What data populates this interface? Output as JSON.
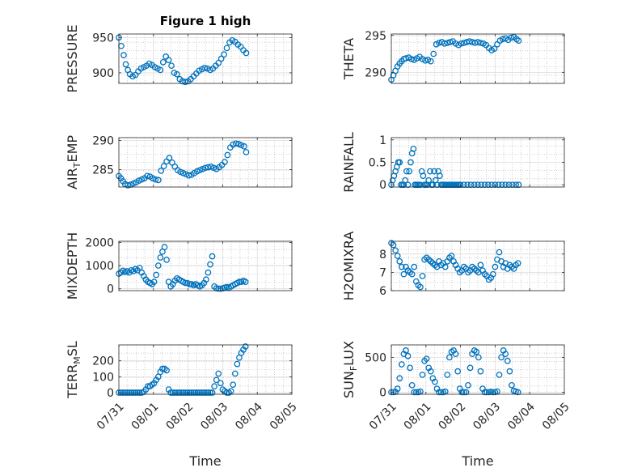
{
  "figure": {
    "title": "Figure 1 high",
    "xlabel": "Time"
  },
  "colors": {
    "marker": "#0072BD",
    "axis": "#262626",
    "grid": "#b0b0b0"
  },
  "chart_data": [
    {
      "type": "scatter",
      "id": "pressure",
      "title": "Figure 1 high",
      "ylabel": "PRESSURE",
      "ylim": [
        885,
        955
      ],
      "yticks": [
        {
          "v": 900,
          "t": "900"
        },
        {
          "v": 950,
          "t": "950"
        }
      ],
      "xticks": [],
      "xlabel": "",
      "x": [
        0.0,
        0.07,
        0.14,
        0.2,
        0.26,
        0.32,
        0.4,
        0.48,
        0.56,
        0.64,
        0.72,
        0.8,
        0.88,
        0.96,
        1.04,
        1.12,
        1.2,
        1.28,
        1.36,
        1.44,
        1.52,
        1.6,
        1.68,
        1.76,
        1.84,
        1.92,
        2.0,
        2.08,
        2.16,
        2.24,
        2.32,
        2.4,
        2.48,
        2.56,
        2.64,
        2.72,
        2.8,
        2.88,
        2.96,
        3.04,
        3.12,
        3.2,
        3.28,
        3.36,
        3.44,
        3.52,
        3.6,
        3.68
      ],
      "y": [
        950,
        938,
        925,
        912,
        904,
        898,
        895,
        897,
        902,
        906,
        908,
        910,
        913,
        911,
        908,
        906,
        904,
        915,
        923,
        918,
        910,
        900,
        898,
        891,
        888,
        887,
        888,
        891,
        895,
        899,
        903,
        905,
        907,
        906,
        904,
        906,
        910,
        914,
        920,
        926,
        935,
        943,
        946,
        944,
        940,
        937,
        932,
        928
      ]
    },
    {
      "type": "scatter",
      "id": "theta",
      "ylabel": "THETA",
      "ylim": [
        288.5,
        295.2
      ],
      "yticks": [
        {
          "v": 290,
          "t": "290"
        },
        {
          "v": 295,
          "t": "295"
        }
      ],
      "xticks": [],
      "xlabel": "",
      "x": [
        0.0,
        0.06,
        0.12,
        0.18,
        0.24,
        0.3,
        0.36,
        0.42,
        0.5,
        0.58,
        0.66,
        0.74,
        0.82,
        0.9,
        0.98,
        1.06,
        1.14,
        1.22,
        1.3,
        1.38,
        1.46,
        1.54,
        1.62,
        1.7,
        1.78,
        1.86,
        1.94,
        2.02,
        2.1,
        2.18,
        2.26,
        2.34,
        2.42,
        2.5,
        2.58,
        2.66,
        2.74,
        2.82,
        2.9,
        2.98,
        3.06,
        3.14,
        3.22,
        3.3,
        3.38,
        3.46,
        3.54,
        3.62,
        3.68
      ],
      "y": [
        289.0,
        289.6,
        290.2,
        290.8,
        291.2,
        291.5,
        291.8,
        291.9,
        292.0,
        291.8,
        291.7,
        291.9,
        292.1,
        291.8,
        291.6,
        291.7,
        291.5,
        292.5,
        293.8,
        294.0,
        294.1,
        293.9,
        294.0,
        294.1,
        294.2,
        293.9,
        293.7,
        293.9,
        294.0,
        294.1,
        294.2,
        294.1,
        294.0,
        294.1,
        294.0,
        293.9,
        293.7,
        293.3,
        293.0,
        293.2,
        293.8,
        294.3,
        294.5,
        294.6,
        294.4,
        294.7,
        294.8,
        294.5,
        294.3
      ]
    },
    {
      "type": "scatter",
      "id": "air_temp",
      "ylabel": "AIR",
      "ylabel_sub": "T",
      "ylabel_rest": "EMP",
      "ylim": [
        282,
        290.5
      ],
      "yticks": [
        {
          "v": 285,
          "t": "285"
        },
        {
          "v": 290,
          "t": "290"
        }
      ],
      "xticks": [],
      "xlabel": "",
      "x": [
        0.0,
        0.06,
        0.12,
        0.18,
        0.26,
        0.34,
        0.42,
        0.5,
        0.58,
        0.66,
        0.74,
        0.82,
        0.9,
        0.98,
        1.06,
        1.14,
        1.22,
        1.3,
        1.38,
        1.46,
        1.54,
        1.62,
        1.7,
        1.78,
        1.86,
        1.94,
        2.02,
        2.1,
        2.18,
        2.26,
        2.34,
        2.42,
        2.5,
        2.58,
        2.66,
        2.74,
        2.82,
        2.9,
        2.98,
        3.06,
        3.14,
        3.22,
        3.3,
        3.38,
        3.46,
        3.54,
        3.62,
        3.68
      ],
      "y": [
        283.9,
        283.5,
        283.0,
        282.5,
        282.3,
        282.4,
        282.6,
        282.8,
        283.1,
        283.3,
        283.5,
        283.9,
        283.8,
        283.5,
        283.3,
        283.2,
        284.8,
        285.6,
        286.4,
        287.0,
        286.2,
        285.5,
        284.9,
        284.6,
        284.4,
        284.2,
        284.0,
        284.1,
        284.4,
        284.7,
        284.9,
        285.1,
        285.3,
        285.4,
        285.5,
        285.3,
        285.1,
        285.4,
        285.8,
        286.3,
        287.5,
        288.8,
        289.3,
        289.5,
        289.4,
        289.2,
        289.0,
        288.0
      ]
    },
    {
      "type": "scatter",
      "id": "rainfall",
      "ylabel": "RAINFALL",
      "ylim": [
        -0.05,
        1.05
      ],
      "yticks": [
        {
          "v": 0,
          "t": "0"
        },
        {
          "v": 0.5,
          "t": "0.5"
        },
        {
          "v": 1,
          "t": "1"
        }
      ],
      "xticks": [],
      "xlabel": "",
      "x": [
        0.0,
        0.04,
        0.08,
        0.12,
        0.16,
        0.2,
        0.24,
        0.28,
        0.32,
        0.36,
        0.4,
        0.44,
        0.48,
        0.52,
        0.56,
        0.6,
        0.64,
        0.68,
        0.72,
        0.76,
        0.8,
        0.84,
        0.88,
        0.92,
        0.96,
        1.0,
        1.04,
        1.08,
        1.12,
        1.16,
        1.2,
        1.24,
        1.28,
        1.32,
        1.36,
        1.4,
        1.44,
        1.48,
        1.52,
        1.56,
        1.6,
        1.64,
        1.68,
        1.72,
        1.76,
        1.8,
        1.84,
        1.88,
        1.92,
        1.96,
        2.0,
        2.1,
        2.2,
        2.3,
        2.4,
        2.5,
        2.6,
        2.7,
        2.8,
        2.9,
        3.0,
        3.1,
        3.2,
        3.3,
        3.4,
        3.5,
        3.6,
        3.68
      ],
      "y": [
        0.0,
        0.1,
        0.2,
        0.3,
        0.4,
        0.5,
        0.5,
        0.0,
        0.0,
        0.0,
        0.1,
        0.3,
        0.0,
        0.3,
        0.5,
        0.7,
        0.8,
        0.0,
        0.0,
        0.0,
        0.0,
        0.0,
        0.3,
        0.2,
        0.0,
        0.0,
        0.0,
        0.1,
        0.3,
        0.0,
        0.0,
        0.3,
        0.1,
        0.0,
        0.3,
        0.2,
        0.0,
        0.0,
        0.0,
        0.0,
        0.0,
        0.0,
        0.0,
        0.0,
        0.0,
        0.0,
        0.0,
        0.0,
        0.0,
        0.0,
        0.0,
        0.0,
        0.0,
        0.0,
        0.0,
        0.0,
        0.0,
        0.0,
        0.0,
        0.0,
        0.0,
        0.0,
        0.0,
        0.0,
        0.0,
        0.0,
        0.0,
        0.0
      ]
    },
    {
      "type": "scatter",
      "id": "mixdepth",
      "ylabel": "MIXDEPTH",
      "ylim": [
        -80,
        2050
      ],
      "yticks": [
        {
          "v": 0,
          "t": "0"
        },
        {
          "v": 1000,
          "t": "1000"
        },
        {
          "v": 2000,
          "t": "2000"
        }
      ],
      "xticks": [],
      "xlabel": "",
      "x": [
        0.0,
        0.06,
        0.12,
        0.18,
        0.24,
        0.3,
        0.36,
        0.42,
        0.48,
        0.54,
        0.6,
        0.66,
        0.72,
        0.78,
        0.84,
        0.9,
        0.96,
        1.02,
        1.08,
        1.14,
        1.2,
        1.26,
        1.32,
        1.38,
        1.44,
        1.5,
        1.56,
        1.62,
        1.68,
        1.74,
        1.8,
        1.86,
        1.92,
        1.98,
        2.04,
        2.1,
        2.16,
        2.22,
        2.28,
        2.34,
        2.4,
        2.46,
        2.52,
        2.58,
        2.64,
        2.7,
        2.76,
        2.82,
        2.88,
        2.94,
        3.0,
        3.06,
        3.12,
        3.18,
        3.24,
        3.3,
        3.36,
        3.42,
        3.48,
        3.54,
        3.6,
        3.66
      ],
      "y": [
        650,
        700,
        780,
        720,
        760,
        700,
        800,
        760,
        850,
        800,
        900,
        700,
        550,
        400,
        300,
        250,
        200,
        300,
        600,
        1000,
        1350,
        1600,
        1800,
        1250,
        300,
        100,
        200,
        350,
        450,
        400,
        350,
        300,
        250,
        250,
        200,
        200,
        150,
        200,
        150,
        100,
        150,
        250,
        400,
        700,
        1050,
        1400,
        100,
        20,
        10,
        0,
        20,
        50,
        80,
        50,
        100,
        150,
        200,
        250,
        300,
        300,
        350,
        300
      ]
    },
    {
      "type": "scatter",
      "id": "h2omixra",
      "ylabel": "H2OMIXRA",
      "ylim": [
        6,
        8.7
      ],
      "yticks": [
        {
          "v": 6,
          "t": "6"
        },
        {
          "v": 7,
          "t": "7"
        },
        {
          "v": 8,
          "t": "8"
        }
      ],
      "xticks": [],
      "xlabel": "",
      "x": [
        0.0,
        0.06,
        0.12,
        0.18,
        0.24,
        0.3,
        0.36,
        0.42,
        0.48,
        0.54,
        0.6,
        0.66,
        0.72,
        0.78,
        0.84,
        0.9,
        0.96,
        1.02,
        1.08,
        1.14,
        1.2,
        1.26,
        1.32,
        1.38,
        1.44,
        1.5,
        1.56,
        1.62,
        1.68,
        1.74,
        1.8,
        1.86,
        1.92,
        1.98,
        2.04,
        2.1,
        2.16,
        2.22,
        2.28,
        2.34,
        2.4,
        2.46,
        2.52,
        2.58,
        2.64,
        2.7,
        2.76,
        2.82,
        2.88,
        2.94,
        3.0,
        3.06,
        3.12,
        3.18,
        3.24,
        3.3,
        3.36,
        3.42,
        3.48,
        3.54,
        3.6,
        3.66
      ],
      "y": [
        8.6,
        8.5,
        8.2,
        7.9,
        7.6,
        7.3,
        6.9,
        7.3,
        7.1,
        7.0,
        6.9,
        7.3,
        6.5,
        6.3,
        6.2,
        6.8,
        7.7,
        7.8,
        7.7,
        7.6,
        7.5,
        7.4,
        7.3,
        7.6,
        7.4,
        7.5,
        7.3,
        7.6,
        7.8,
        7.9,
        7.6,
        7.4,
        7.2,
        7.0,
        7.1,
        7.3,
        7.2,
        7.0,
        7.1,
        7.3,
        7.2,
        7.1,
        7.0,
        7.4,
        7.1,
        6.9,
        6.8,
        6.6,
        6.7,
        6.9,
        7.3,
        7.7,
        8.1,
        7.6,
        7.3,
        7.5,
        7.2,
        7.4,
        7.3,
        7.2,
        7.4,
        7.5
      ]
    },
    {
      "type": "scatter",
      "id": "terr_msl",
      "ylabel": "TERR",
      "ylabel_sub": "M",
      "ylabel_rest": "SL",
      "ylim": [
        -10,
        300
      ],
      "yticks": [
        {
          "v": 0,
          "t": "0"
        },
        {
          "v": 100,
          "t": "100"
        },
        {
          "v": 200,
          "t": "200"
        }
      ],
      "xlim": [
        0,
        5
      ],
      "xlabel": "Time",
      "xticks": [
        {
          "v": 0,
          "t": "07/31"
        },
        {
          "v": 1,
          "t": "08/01"
        },
        {
          "v": 2,
          "t": "08/02"
        },
        {
          "v": 3,
          "t": "08/03"
        },
        {
          "v": 4,
          "t": "08/04"
        },
        {
          "v": 5,
          "t": "08/05"
        }
      ],
      "x": [
        0.0,
        0.06,
        0.12,
        0.18,
        0.24,
        0.3,
        0.36,
        0.42,
        0.48,
        0.54,
        0.6,
        0.66,
        0.72,
        0.78,
        0.84,
        0.9,
        0.96,
        1.02,
        1.08,
        1.14,
        1.2,
        1.26,
        1.32,
        1.38,
        1.44,
        1.5,
        1.56,
        1.62,
        1.68,
        1.74,
        1.8,
        1.86,
        1.92,
        1.98,
        2.04,
        2.1,
        2.16,
        2.22,
        2.28,
        2.34,
        2.4,
        2.46,
        2.52,
        2.58,
        2.64,
        2.7,
        2.76,
        2.82,
        2.88,
        2.94,
        3.0,
        3.06,
        3.12,
        3.18,
        3.24,
        3.3,
        3.36,
        3.42,
        3.48,
        3.54,
        3.6,
        3.66
      ],
      "y": [
        0,
        0,
        0,
        0,
        0,
        0,
        0,
        0,
        0,
        0,
        0,
        0,
        5,
        20,
        40,
        40,
        50,
        60,
        80,
        100,
        130,
        150,
        150,
        140,
        20,
        0,
        0,
        0,
        0,
        0,
        0,
        0,
        0,
        0,
        0,
        0,
        0,
        0,
        0,
        0,
        0,
        0,
        0,
        0,
        0,
        0,
        40,
        80,
        120,
        60,
        20,
        10,
        0,
        0,
        10,
        50,
        120,
        180,
        220,
        250,
        270,
        290
      ]
    },
    {
      "type": "scatter",
      "id": "sun_flux",
      "ylabel": "SUN",
      "ylabel_sub": "F",
      "ylabel_rest": "LUX",
      "ylim": [
        -30,
        680
      ],
      "yticks": [
        {
          "v": 0,
          "t": "0"
        },
        {
          "v": 500,
          "t": "500"
        }
      ],
      "xlim": [
        0,
        5
      ],
      "xlabel": "Time",
      "xticks": [
        {
          "v": 0,
          "t": "07/31"
        },
        {
          "v": 1,
          "t": "08/01"
        },
        {
          "v": 2,
          "t": "08/02"
        },
        {
          "v": 3,
          "t": "08/03"
        },
        {
          "v": 4,
          "t": "08/04"
        },
        {
          "v": 5,
          "t": "08/05"
        }
      ],
      "x": [
        0.0,
        0.06,
        0.12,
        0.18,
        0.24,
        0.3,
        0.36,
        0.42,
        0.48,
        0.54,
        0.6,
        0.66,
        0.72,
        0.78,
        0.84,
        0.9,
        0.96,
        1.02,
        1.08,
        1.14,
        1.2,
        1.26,
        1.32,
        1.38,
        1.44,
        1.5,
        1.56,
        1.62,
        1.68,
        1.74,
        1.8,
        1.86,
        1.92,
        1.98,
        2.04,
        2.1,
        2.16,
        2.22,
        2.28,
        2.34,
        2.4,
        2.46,
        2.52,
        2.58,
        2.64,
        2.7,
        2.76,
        2.82,
        2.88,
        2.94,
        3.0,
        3.06,
        3.12,
        3.18,
        3.24,
        3.3,
        3.36,
        3.42,
        3.48,
        3.54,
        3.6,
        3.66
      ],
      "y": [
        0,
        0,
        5,
        50,
        200,
        400,
        550,
        600,
        520,
        350,
        100,
        0,
        0,
        0,
        10,
        250,
        450,
        480,
        350,
        300,
        200,
        150,
        50,
        0,
        0,
        0,
        10,
        250,
        500,
        580,
        600,
        550,
        300,
        50,
        0,
        0,
        0,
        100,
        350,
        550,
        600,
        580,
        500,
        300,
        50,
        0,
        0,
        0,
        5,
        0,
        0,
        10,
        250,
        500,
        600,
        550,
        450,
        300,
        100,
        20,
        10,
        0
      ]
    }
  ]
}
